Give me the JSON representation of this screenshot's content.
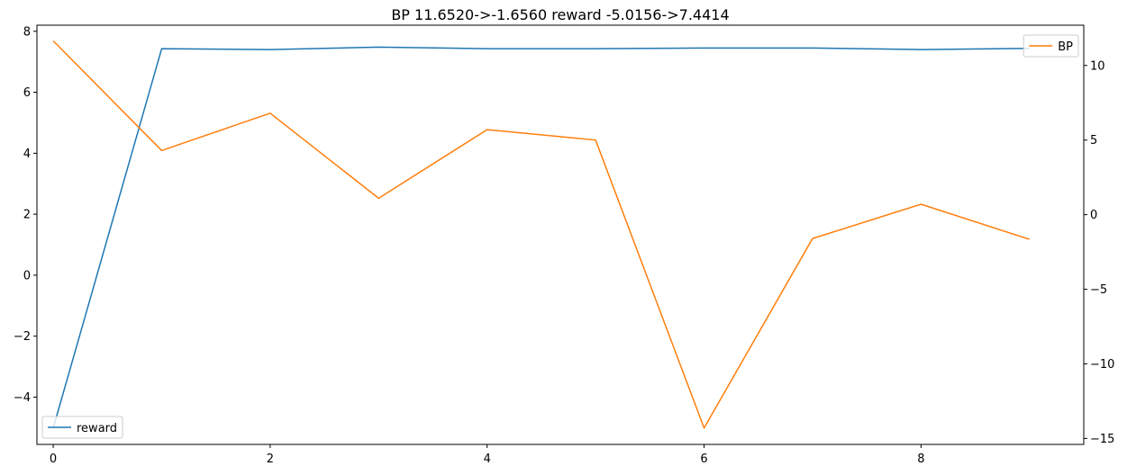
{
  "chart_data": {
    "type": "line",
    "title": "BP 11.6520->-1.6560 reward -5.0156->7.4414",
    "x": [
      0,
      1,
      2,
      3,
      4,
      5,
      6,
      7,
      8,
      9
    ],
    "xticks": [
      "0",
      "2",
      "4",
      "6",
      "8"
    ],
    "xlim": [
      -0.15,
      9.5
    ],
    "left_axis": {
      "ylim": [
        -5.55,
        8.2
      ],
      "ticks": [
        "8",
        "6",
        "4",
        "2",
        "0",
        "−2",
        "−4"
      ]
    },
    "right_axis": {
      "ylim": [
        -15.4,
        12.7
      ],
      "ticks": [
        "10",
        "5",
        "0",
        "−5",
        "−10",
        "−15"
      ]
    },
    "series": [
      {
        "name": "reward",
        "axis": "left",
        "color": "#1f77b4",
        "values": [
          -5.0156,
          7.43,
          7.4,
          7.48,
          7.43,
          7.43,
          7.45,
          7.45,
          7.4,
          7.4414
        ]
      },
      {
        "name": "BP",
        "axis": "right",
        "color": "#ff7f0e",
        "values": [
          11.652,
          4.3,
          6.8,
          1.1,
          5.7,
          5.0,
          -14.3,
          -1.6,
          0.7,
          -1.656
        ]
      }
    ],
    "legends": [
      {
        "series": "reward",
        "placement": "lower-left"
      },
      {
        "series": "BP",
        "placement": "upper-right"
      }
    ],
    "grid": false
  }
}
